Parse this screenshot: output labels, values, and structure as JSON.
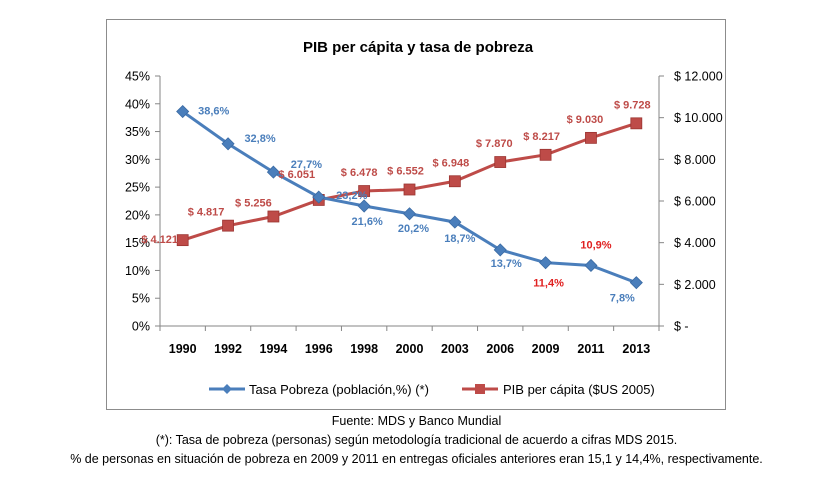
{
  "chart_data": {
    "type": "line",
    "title": "PIB per cápita y tasa de pobreza",
    "categories": [
      "1990",
      "1992",
      "1994",
      "1996",
      "1998",
      "2000",
      "2003",
      "2006",
      "2009",
      "2011",
      "2013"
    ],
    "y_left": {
      "ticks": [
        "0%",
        "5%",
        "10%",
        "15%",
        "20%",
        "25%",
        "30%",
        "35%",
        "40%",
        "45%"
      ],
      "range": [
        0,
        45
      ]
    },
    "y_right": {
      "ticks": [
        "$ -",
        "$ 2.000",
        "$ 4.000",
        "$ 6.000",
        "$ 8.000",
        "$ 10.000",
        "$ 12.000"
      ],
      "range": [
        0,
        12000
      ]
    },
    "grid": false,
    "legend_position": "bottom",
    "series": [
      {
        "name": "Tasa Pobreza (población,%)  (*)",
        "axis": "left",
        "color": "#4a7ebb",
        "marker": "diamond",
        "values": [
          38.6,
          32.8,
          27.7,
          23.2,
          21.6,
          20.2,
          18.7,
          13.7,
          11.4,
          10.9,
          7.8
        ],
        "labels": [
          "38,6%",
          "32,8%",
          "27,7%",
          "23,2%",
          "21,6%",
          "20,2%",
          "18,7%",
          "13,7%",
          "11,4%",
          "10,9%",
          "7,8%"
        ],
        "label_colors": [
          "#4a7ebb",
          "#4a7ebb",
          "#4a7ebb",
          "#4a7ebb",
          "#4a7ebb",
          "#4a7ebb",
          "#4a7ebb",
          "#4a7ebb",
          "#e02020",
          "#e02020",
          "#4a7ebb"
        ]
      },
      {
        "name": "PIB per cápita ($US 2005)",
        "axis": "right",
        "color": "#be4b48",
        "marker": "square",
        "values": [
          4121,
          4817,
          5256,
          6051,
          6478,
          6552,
          6948,
          7870,
          8217,
          9030,
          9728
        ],
        "labels": [
          "$ 4.121",
          "$ 4.817",
          "$ 5.256",
          "$ 6.051",
          "$ 6.478",
          "$ 6.552",
          "$ 6.948",
          "$ 7.870",
          "$ 8.217",
          "$ 9.030",
          "$ 9.728"
        ]
      }
    ]
  },
  "footnotes": {
    "source": "Fuente: MDS y Banco Mundial",
    "note1": "(*): Tasa de pobreza (personas) según metodología tradicional  de acuerdo a cifras MDS 2015.",
    "note2": "% de personas en situación de pobreza en 2009  y 2011  en entregas oficiales anteriores eran 15,1  y 14,4%,  respectivamente."
  }
}
